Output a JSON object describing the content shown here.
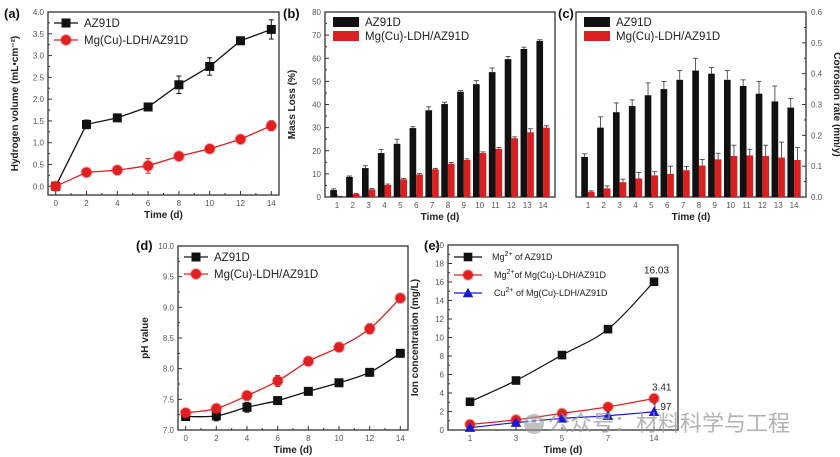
{
  "figure": {
    "watermark": "公众号：材料科学与工程",
    "colors": {
      "black": "#111111",
      "red": "#e02020",
      "red_bar": "#d91f1f",
      "blue": "#1a1ad0"
    }
  },
  "chart_data": [
    {
      "id": "a",
      "panel_label": "(a)",
      "type": "line",
      "title": "",
      "xlabel": "Time (d)",
      "ylabel": "Hydrogen volume (mL•cm⁻²)",
      "xlim": [
        -0.5,
        14.5
      ],
      "ylim": [
        -0.2,
        4.0
      ],
      "xticks": [
        0,
        2,
        4,
        6,
        8,
        10,
        12,
        14
      ],
      "xtick_labels": [
        "0",
        "2",
        "4",
        "6",
        "8",
        "10",
        "12",
        "14"
      ],
      "yticks": [
        0.0,
        0.5,
        1.0,
        1.5,
        2.0,
        2.5,
        3.0,
        3.5,
        4.0
      ],
      "ytick_labels": [
        "0.0",
        "0.5",
        "1.0",
        "1.5",
        "2.0",
        "2.5",
        "3.0",
        "3.5",
        "4.0"
      ],
      "legend_position": "top-left",
      "x": [
        0,
        2,
        4,
        6,
        8,
        10,
        12,
        14
      ],
      "series": [
        {
          "name": "AZ91D",
          "color": "#111111",
          "marker": "square",
          "values": [
            0.0,
            1.42,
            1.57,
            1.82,
            2.33,
            2.75,
            3.34,
            3.6
          ],
          "errors": [
            0.03,
            0.1,
            0.08,
            0.05,
            0.2,
            0.2,
            0.04,
            0.22
          ]
        },
        {
          "name": "Mg(Cu)-LDH/AZ91D",
          "color": "#e02020",
          "marker": "circle",
          "values": [
            0.0,
            0.32,
            0.37,
            0.47,
            0.69,
            0.86,
            1.08,
            1.39
          ],
          "errors": [
            0.03,
            0.05,
            0.08,
            0.17,
            0.05,
            0.04,
            0.07,
            0.11
          ]
        }
      ]
    },
    {
      "id": "b",
      "panel_label": "(b)",
      "type": "bar",
      "title": "",
      "xlabel": "Time (d)",
      "ylabel": "Mass Loss (%)",
      "ylim": [
        0,
        80
      ],
      "yticks": [
        0,
        10,
        20,
        30,
        40,
        50,
        60,
        70,
        80
      ],
      "ytick_labels": [
        "0",
        "10",
        "20",
        "30",
        "40",
        "50",
        "60",
        "70",
        "80"
      ],
      "categories": [
        "1",
        "2",
        "3",
        "4",
        "5",
        "6",
        "7",
        "8",
        "9",
        "10",
        "11",
        "12",
        "13",
        "14"
      ],
      "legend_position": "top-left",
      "series": [
        {
          "name": "AZ91D",
          "color": "#111111",
          "values": [
            3.0,
            8.7,
            12.5,
            19.0,
            23.0,
            29.8,
            37.5,
            40.2,
            45.5,
            48.8,
            54.0,
            59.6,
            64.0,
            67.5
          ],
          "errors": [
            0.5,
            0.4,
            1.0,
            1.5,
            2.0,
            0.6,
            1.5,
            0.8,
            0.5,
            1.5,
            1.8,
            1.2,
            0.8,
            0.5
          ]
        },
        {
          "name": "Mg(Cu)-LDH/AZ91D",
          "color": "#d91f1f",
          "values": [
            0.2,
            1.3,
            3.3,
            5.2,
            7.6,
            9.7,
            12.0,
            14.4,
            16.0,
            19.0,
            20.8,
            25.4,
            28.0,
            30.0
          ],
          "errors": [
            0.1,
            0.3,
            0.4,
            0.4,
            0.4,
            0.4,
            0.4,
            0.5,
            0.5,
            0.5,
            0.6,
            0.6,
            1.5,
            0.8
          ]
        }
      ]
    },
    {
      "id": "c",
      "panel_label": "(c)",
      "type": "bar",
      "title": "",
      "xlabel": "Time (d)",
      "ylabel": "Corrosion rate (mm/y)",
      "ylabel_side": "right",
      "ylim": [
        0,
        0.6
      ],
      "yticks": [
        0.0,
        0.1,
        0.2,
        0.3,
        0.4,
        0.5,
        0.6
      ],
      "ytick_labels": [
        "0.0",
        "0.1",
        "0.2",
        "0.3",
        "0.4",
        "0.5",
        "0.6"
      ],
      "categories": [
        "1",
        "2",
        "3",
        "4",
        "5",
        "6",
        "7",
        "8",
        "9",
        "10",
        "11",
        "12",
        "13",
        "14"
      ],
      "legend_position": "top-left",
      "series": [
        {
          "name": "AZ91D",
          "color": "#111111",
          "values": [
            0.13,
            0.225,
            0.275,
            0.295,
            0.33,
            0.35,
            0.38,
            0.41,
            0.4,
            0.38,
            0.36,
            0.335,
            0.31,
            0.29
          ],
          "errors": [
            0.01,
            0.035,
            0.03,
            0.02,
            0.04,
            0.025,
            0.03,
            0.04,
            0.02,
            0.03,
            0.02,
            0.04,
            0.05,
            0.03
          ]
        },
        {
          "name": "Mg(Cu)-LDH/AZ91D",
          "color": "#d91f1f",
          "values": [
            0.017,
            0.028,
            0.048,
            0.06,
            0.07,
            0.075,
            0.087,
            0.102,
            0.122,
            0.133,
            0.135,
            0.133,
            0.128,
            0.12
          ],
          "errors": [
            0.003,
            0.008,
            0.01,
            0.02,
            0.012,
            0.025,
            0.012,
            0.02,
            0.02,
            0.035,
            0.02,
            0.035,
            0.05,
            0.04
          ]
        }
      ]
    },
    {
      "id": "d",
      "panel_label": "(d)",
      "type": "line",
      "title": "",
      "xlabel": "Time (d)",
      "ylabel": "pH value",
      "xlim": [
        -0.5,
        14.5
      ],
      "ylim": [
        7.0,
        10.0
      ],
      "xticks": [
        0,
        2,
        4,
        6,
        8,
        10,
        12,
        14
      ],
      "xtick_labels": [
        "0",
        "2",
        "4",
        "6",
        "8",
        "10",
        "12",
        "14"
      ],
      "yticks": [
        7.0,
        7.5,
        8.0,
        8.5,
        9.0,
        9.5,
        10.0
      ],
      "ytick_labels": [
        "7.0",
        "7.5",
        "8.0",
        "8.5",
        "9.0",
        "9.5",
        "10.0"
      ],
      "legend_position": "top-left",
      "x": [
        0,
        2,
        4,
        6,
        8,
        10,
        12,
        14
      ],
      "series": [
        {
          "name": "AZ91D",
          "color": "#111111",
          "marker": "square",
          "values": [
            7.22,
            7.23,
            7.37,
            7.48,
            7.63,
            7.77,
            7.94,
            8.25
          ],
          "errors": [
            0.06,
            0.08,
            0.08,
            0.06,
            0.03,
            0.06,
            0.05,
            0.04
          ]
        },
        {
          "name": "Mg(Cu)-LDH/AZ91D",
          "color": "#e02020",
          "marker": "circle",
          "values": [
            7.28,
            7.35,
            7.56,
            7.8,
            8.12,
            8.35,
            8.65,
            9.15
          ],
          "errors": [
            0.04,
            0.05,
            0.07,
            0.09,
            0.06,
            0.07,
            0.08,
            0.05
          ]
        }
      ]
    },
    {
      "id": "e",
      "panel_label": "(e)",
      "type": "line",
      "title": "",
      "xlabel": "Time (d)",
      "ylabel": "Ion concentration (mg/L)",
      "ylim": [
        0,
        20
      ],
      "categories": [
        "1",
        "3",
        "5",
        "7",
        "14"
      ],
      "yticks": [
        0,
        2,
        4,
        6,
        8,
        10,
        12,
        14,
        16,
        18,
        20
      ],
      "ytick_labels": [
        "0",
        "2",
        "4",
        "6",
        "8",
        "10",
        "12",
        "14",
        "16",
        "18",
        "20"
      ],
      "legend_position": "top-left",
      "series": [
        {
          "name": "Mg²⁺ of AZ91D",
          "name_base": "Mg",
          "name_sup": "2+",
          "name_rest": " of AZ91D",
          "color": "#111111",
          "marker": "square",
          "values": [
            3.05,
            5.35,
            8.1,
            10.9,
            16.03
          ],
          "end_label": "16.03"
        },
        {
          "name": "Mg²⁺of Mg(Cu)-LDH/AZ91D",
          "name_base": "Mg",
          "name_sup": "2+",
          "name_rest": "of Mg(Cu)-LDH/AZ91D",
          "color": "#e02020",
          "marker": "circle",
          "values": [
            0.6,
            1.1,
            1.8,
            2.5,
            3.41
          ],
          "end_label": "3.41"
        },
        {
          "name": "Cu²⁺ of Mg(Cu)-LDH/AZ91D",
          "name_base": "Cu",
          "name_sup": "2+",
          "name_rest": " of  Mg(Cu)-LDH/AZ91D",
          "color": "#1a1ad0",
          "marker": "triangle",
          "values": [
            0.25,
            0.8,
            1.25,
            1.55,
            1.97
          ],
          "end_label": "1.97"
        }
      ]
    }
  ]
}
